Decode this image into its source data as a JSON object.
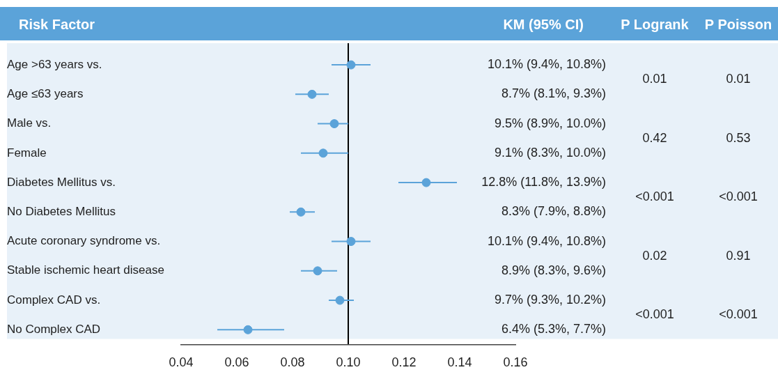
{
  "chart_data": {
    "type": "scatter",
    "ylabel": "Risk Factor",
    "categories": [
      "Age >63 years vs.",
      "Age ≤63 years",
      "Male vs.",
      "Female",
      "Diabetes Mellitus vs.",
      "No Diabetes Mellitus",
      "Acute coronary syndrome vs.",
      "Stable ischemic heart disease",
      "Complex CAD vs.",
      "No Complex CAD"
    ],
    "values": [
      0.101,
      0.087,
      0.095,
      0.091,
      0.128,
      0.083,
      0.101,
      0.089,
      0.097,
      0.064
    ],
    "errors": [
      [
        0.094,
        0.108
      ],
      [
        0.081,
        0.093
      ],
      [
        0.089,
        0.1
      ],
      [
        0.083,
        0.1
      ],
      [
        0.118,
        0.139
      ],
      [
        0.079,
        0.088
      ],
      [
        0.094,
        0.108
      ],
      [
        0.083,
        0.096
      ],
      [
        0.093,
        0.102
      ],
      [
        0.053,
        0.077
      ]
    ],
    "value_labels": [
      "10.1% (9.4%, 10.8%)",
      "8.7% (8.1%, 9.3%)",
      "9.5% (8.9%, 10.0%)",
      "9.1% (8.3%, 10.0%)",
      "12.8% (11.8%, 13.9%)",
      "8.3% (7.9%, 8.8%)",
      "10.1% (9.4%, 10.8%)",
      "8.9% (8.3%, 9.6%)",
      "9.7% (9.3%, 10.2%)",
      "6.4% (5.3%, 7.7%)"
    ],
    "color": "#5ba3d9",
    "marker": "circle",
    "orientation": "horizontal",
    "xlim": [
      0.04,
      0.16
    ],
    "xticks": [
      0.04,
      0.06,
      0.08,
      {
        "value": 0.1,
        "label": "0.10"
      },
      0.12,
      0.14,
      0.16
    ],
    "ref_lines": [
      {
        "axis": "x",
        "value": 0.1,
        "color": "#000000"
      }
    ],
    "annotations": [
      "KM (95% CI)",
      "P Logrank",
      "P Poisson",
      "0.01",
      "0.01",
      "0.42",
      "0.53",
      "<0.001",
      "<0.001",
      "0.02",
      "0.91",
      "<0.001",
      "<0.001"
    ],
    "grid": false,
    "legend": false
  }
}
